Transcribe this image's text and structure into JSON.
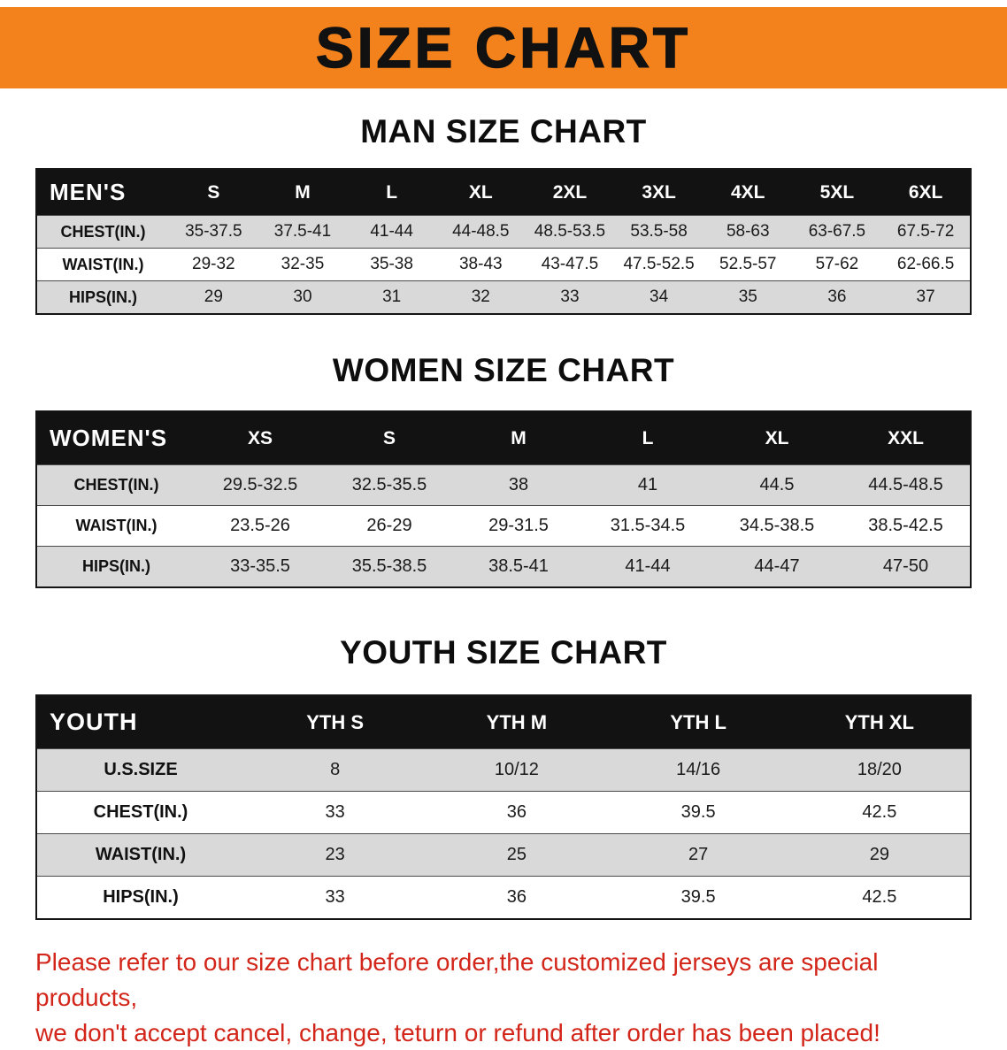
{
  "banner": {
    "title": "SIZE CHART"
  },
  "colors": {
    "banner_bg": "#F4821C",
    "table_header_bg": "#121212",
    "table_header_text": "#ffffff",
    "row_stripe_gray": "#d9d9d9",
    "disclaimer_red": "#d3261a"
  },
  "chart_data": [
    {
      "type": "table",
      "title": "MAN SIZE CHART",
      "header": [
        "MEN'S",
        "S",
        "M",
        "L",
        "XL",
        "2XL",
        "3XL",
        "4XL",
        "5XL",
        "6XL"
      ],
      "rows": [
        [
          "CHEST(IN.)",
          "35-37.5",
          "37.5-41",
          "41-44",
          "44-48.5",
          "48.5-53.5",
          "53.5-58",
          "58-63",
          "63-67.5",
          "67.5-72"
        ],
        [
          "WAIST(IN.)",
          "29-32",
          "32-35",
          "35-38",
          "38-43",
          "43-47.5",
          "47.5-52.5",
          "52.5-57",
          "57-62",
          "62-66.5"
        ],
        [
          "HIPS(IN.)",
          "29",
          "30",
          "31",
          "32",
          "33",
          "34",
          "35",
          "36",
          "37"
        ]
      ]
    },
    {
      "type": "table",
      "title": "WOMEN SIZE CHART",
      "header": [
        "WOMEN'S",
        "XS",
        "S",
        "M",
        "L",
        "XL",
        "XXL"
      ],
      "rows": [
        [
          "CHEST(IN.)",
          "29.5-32.5",
          "32.5-35.5",
          "38",
          "41",
          "44.5",
          "44.5-48.5"
        ],
        [
          "WAIST(IN.)",
          "23.5-26",
          "26-29",
          "29-31.5",
          "31.5-34.5",
          "34.5-38.5",
          "38.5-42.5"
        ],
        [
          "HIPS(IN.)",
          "33-35.5",
          "35.5-38.5",
          "38.5-41",
          "41-44",
          "44-47",
          "47-50"
        ]
      ]
    },
    {
      "type": "table",
      "title": "YOUTH SIZE CHART",
      "header": [
        "YOUTH",
        "YTH S",
        "YTH M",
        "YTH L",
        "YTH XL"
      ],
      "rows": [
        [
          "U.S.SIZE",
          "8",
          "10/12",
          "14/16",
          "18/20"
        ],
        [
          "CHEST(IN.)",
          "33",
          "36",
          "39.5",
          "42.5"
        ],
        [
          "WAIST(IN.)",
          "23",
          "25",
          "27",
          "29"
        ],
        [
          "HIPS(IN.)",
          "33",
          "36",
          "39.5",
          "42.5"
        ]
      ]
    }
  ],
  "footer": {
    "lines": [
      "Please refer to our size chart before order,the customized jerseys are special products,",
      "we don't accept cancel, change, teturn or refund after order has been placed!"
    ]
  }
}
